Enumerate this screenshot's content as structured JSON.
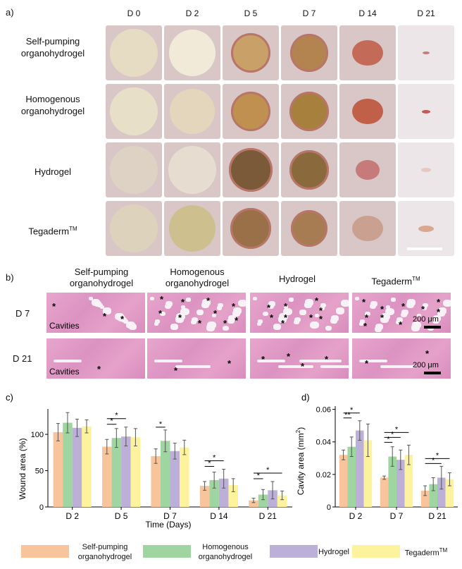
{
  "panel_a": {
    "label": "a)",
    "days": [
      "D 0",
      "D 2",
      "D 5",
      "D 7",
      "D 14",
      "D 21"
    ],
    "rows": [
      {
        "line1": "Self-pumping",
        "line2": "organohydrogel"
      },
      {
        "line1": "Homogenous",
        "line2": "organohydrogel"
      },
      {
        "line1": "Hydrogel",
        "line2": ""
      },
      {
        "line1": "Tegaderm",
        "line2": "",
        "sup": "TM"
      }
    ]
  },
  "panel_b": {
    "label": "b)",
    "columns": [
      {
        "line1": "Self-pumping",
        "line2": "organohydrogel"
      },
      {
        "line1": "Homogenous",
        "line2": "organohydrogel"
      },
      {
        "line1": "Hydrogel",
        "line2": ""
      },
      {
        "line1": "Tegaderm",
        "line2": "",
        "sup": "TM"
      }
    ],
    "rows": [
      "D 7",
      "D 21"
    ],
    "cavities_label": "Cavities",
    "scale_label": "200 μm",
    "star": "*"
  },
  "chart_data": [
    {
      "panel": "c)",
      "type": "bar",
      "categories": [
        "D 2",
        "D 5",
        "D 7",
        "D 14",
        "D 21"
      ],
      "xlabel": "Time (Days)",
      "ylabel": "Wound area (%)",
      "ylim": [
        0,
        135
      ],
      "yticks": [
        0,
        50,
        100
      ],
      "series": [
        {
          "name": "Self-pumping organohydrogel",
          "color": "#f7c49b",
          "values": [
            103,
            83,
            70,
            29,
            9
          ],
          "errors": [
            12,
            10,
            10,
            6,
            3
          ]
        },
        {
          "name": "Homogenous organohydrogel",
          "color": "#9fd5a0",
          "values": [
            116,
            95,
            91,
            37,
            17
          ],
          "errors": [
            14,
            13,
            15,
            11,
            7
          ]
        },
        {
          "name": "Hydrogel",
          "color": "#bdb0d8",
          "values": [
            109,
            97,
            77,
            39,
            23
          ],
          "errors": [
            12,
            13,
            11,
            13,
            12
          ]
        },
        {
          "name": "Tegaderm™",
          "color": "#fdf39c",
          "values": [
            111,
            96,
            82,
            30,
            16
          ],
          "errors": [
            9,
            12,
            10,
            9,
            6
          ]
        }
      ],
      "significance": [
        {
          "group": 1,
          "from": 0,
          "to": 1,
          "label": "*"
        },
        {
          "group": 1,
          "from": 0,
          "to": 2,
          "label": "*"
        },
        {
          "group": 2,
          "from": 0,
          "to": 1,
          "label": "*"
        },
        {
          "group": 3,
          "from": 0,
          "to": 1,
          "label": "*"
        },
        {
          "group": 3,
          "from": 0,
          "to": 2,
          "label": "*"
        },
        {
          "group": 4,
          "from": 0,
          "to": 1,
          "label": "*"
        },
        {
          "group": 4,
          "from": 0,
          "to": 3,
          "label": "*"
        }
      ]
    },
    {
      "panel": "d)",
      "type": "bar",
      "categories": [
        "D 2",
        "D 7",
        "D 21"
      ],
      "ylabel": "Cavity area (mm²)",
      "ylim": [
        0,
        0.062
      ],
      "yticks": [
        0,
        0.02,
        0.04,
        0.06
      ],
      "ytick_labels": [
        "0",
        "0.02",
        "0.04",
        "0.06"
      ],
      "series": [
        {
          "name": "Self-pumping organohydrogel",
          "color": "#f7c49b",
          "values": [
            0.032,
            0.018,
            0.01
          ],
          "errors": [
            0.003,
            0.001,
            0.003
          ]
        },
        {
          "name": "Homogenous organohydrogel",
          "color": "#9fd5a0",
          "values": [
            0.037,
            0.031,
            0.014
          ],
          "errors": [
            0.006,
            0.006,
            0.004
          ]
        },
        {
          "name": "Hydrogel",
          "color": "#bdb0d8",
          "values": [
            0.047,
            0.029,
            0.018
          ],
          "errors": [
            0.006,
            0.006,
            0.007
          ]
        },
        {
          "name": "Tegaderm™",
          "color": "#fdf39c",
          "values": [
            0.041,
            0.032,
            0.017
          ],
          "errors": [
            0.01,
            0.006,
            0.004
          ]
        }
      ],
      "significance": [
        {
          "group": 0,
          "from": 0,
          "to": 1,
          "label": "**"
        },
        {
          "group": 0,
          "from": 0,
          "to": 2,
          "label": "*"
        },
        {
          "group": 1,
          "from": 0,
          "to": 1,
          "label": "*"
        },
        {
          "group": 1,
          "from": 0,
          "to": 2,
          "label": "*"
        },
        {
          "group": 1,
          "from": 0,
          "to": 3,
          "label": "*"
        },
        {
          "group": 2,
          "from": 0,
          "to": 2,
          "label": "*"
        },
        {
          "group": 2,
          "from": 0,
          "to": 3,
          "label": "*"
        }
      ]
    }
  ],
  "legend": [
    {
      "line1": "Self-pumping",
      "line2": "organohydrogel",
      "color": "#f7c49b"
    },
    {
      "line1": "Homogenous",
      "line2": "organohydrogel",
      "color": "#9fd5a0"
    },
    {
      "line1": "Hydrogel",
      "line2": "",
      "color": "#bdb0d8"
    },
    {
      "line1": "Tegaderm",
      "line2": "",
      "sup": "TM",
      "color": "#fdf39c"
    }
  ]
}
